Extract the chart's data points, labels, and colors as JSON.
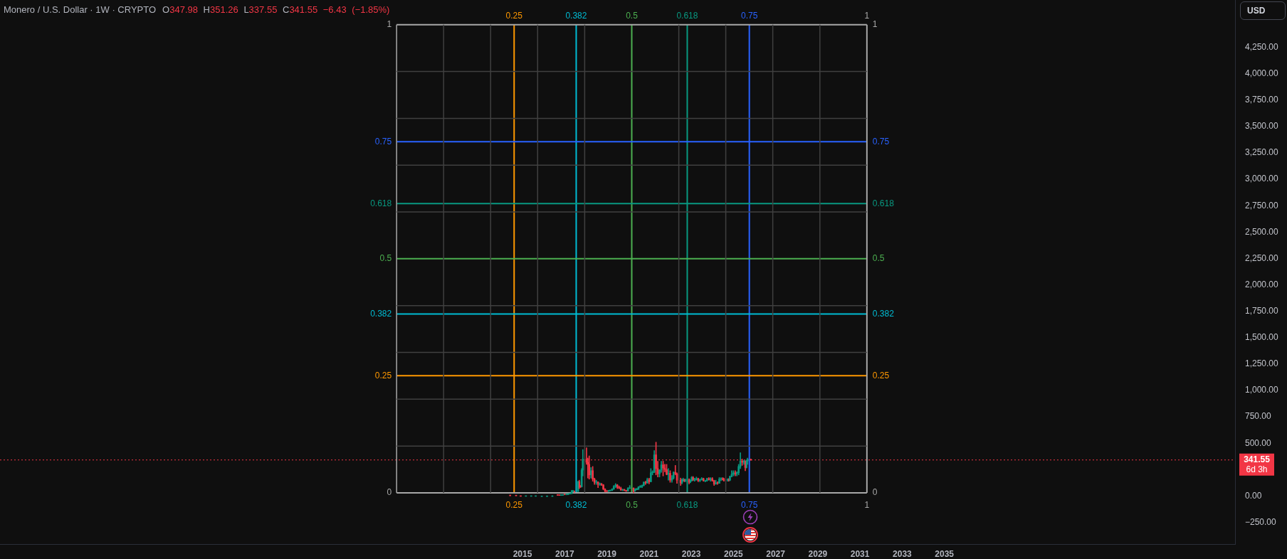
{
  "chart_data": {
    "type": "candlestick",
    "title": "Monero / U.S. Dollar · 1W · CRYPTO",
    "subtitle": "O347.98 H351.26 L337.55 C341.55 −6.43 (−1.85%)",
    "x": [
      "2014-06",
      "2014-09-12",
      "2014-12",
      "2015-03",
      "2015-06",
      "2015-08-18",
      "2015-12",
      "2016-03",
      "2016-06",
      "2016-09",
      "2016-10",
      "2016-11",
      "2016-12",
      "2017-01",
      "2017-02",
      "2017-03",
      "2017-04",
      "2017-05",
      "2017-05-25",
      "2017-06-17",
      "2017-08-20",
      "2017-09-10",
      "2017-10",
      "2017-10-22",
      "2017-11-11",
      "2018-01-14",
      "2018-02-05",
      "2018-03",
      "2018-04",
      "2018-05",
      "2018-06",
      "2018-07",
      "2018-08",
      "2018-09",
      "2018-10",
      "2018-11",
      "2018-12",
      "2019-01",
      "2019-02",
      "2019-03",
      "2019-04",
      "2019-05",
      "2019-06",
      "2019-07",
      "2019-08",
      "2019-09",
      "2019-10",
      "2019-11",
      "2019-12",
      "2020-01",
      "2020-02",
      "2020-04-08",
      "2020-04-28",
      "2020-05-18",
      "2020-06-10",
      "2020-07",
      "2020-08",
      "2020-09",
      "2020-10",
      "2020-11",
      "2020-12",
      "2021-01",
      "2021-02",
      "2021-03",
      "2021-04",
      "2021-05",
      "2021-06",
      "2021-07",
      "2021-08",
      "2021-09",
      "2021-10",
      "2021-11",
      "2021-12",
      "2022-01",
      "2022-02",
      "2022-03",
      "2022-04",
      "2022-04-29",
      "2022-07-02",
      "2022-07-24",
      "2022-08-14",
      "2022-09-03",
      "2022-09-22",
      "2022-11-25",
      "2022-12-15",
      "2023-01-08",
      "2023-02",
      "2023-03",
      "2023-04",
      "2023-05",
      "2023-06",
      "2023-07",
      "2023-08",
      "2023-09",
      "2023-10",
      "2023-11",
      "2023-12",
      "2024-01",
      "2024-02",
      "2024-03",
      "2024-04",
      "2024-05",
      "2024-06",
      "2024-07",
      "2024-07-20",
      "2024-09-22",
      "2024-10-12",
      "2024-11",
      "2024-12",
      "2025-01",
      "2025-02",
      "2025-03",
      "2025-04",
      "2025-05",
      "2025-06",
      "2025-07",
      "2025-07-25",
      "2025-08-14",
      "2025-09-01",
      "2025-10-27"
    ],
    "ohlc": [
      [
        5,
        5,
        2,
        3
      ],
      [
        3,
        3,
        2,
        2
      ],
      [
        1,
        1,
        0,
        0
      ],
      [
        0,
        1,
        0,
        0
      ],
      [
        0,
        1,
        0,
        0
      ],
      [
        0,
        1,
        0,
        1
      ],
      [
        1,
        1,
        0,
        1
      ],
      [
        1,
        2,
        1,
        1
      ],
      [
        2,
        3,
        2,
        2
      ],
      [
        9,
        12,
        6,
        7
      ],
      [
        7,
        8,
        5,
        6
      ],
      [
        6,
        10,
        5,
        8
      ],
      [
        8,
        14,
        7,
        13
      ],
      [
        13,
        14,
        11,
        12
      ],
      [
        12,
        14,
        11,
        13
      ],
      [
        13,
        24,
        13,
        20
      ],
      [
        20,
        25,
        19,
        23
      ],
      [
        23,
        55,
        22,
        40
      ],
      [
        40,
        55,
        38,
        45
      ],
      [
        45,
        47,
        36,
        42
      ],
      [
        42,
        140,
        42,
        135
      ],
      [
        135,
        150,
        70,
        90
      ],
      [
        90,
        100,
        80,
        88
      ],
      [
        88,
        260,
        85,
        245
      ],
      [
        245,
        440,
        190,
        350
      ],
      [
        350,
        458,
        300,
        320
      ],
      [
        320,
        360,
        170,
        300
      ],
      [
        300,
        380,
        160,
        200
      ],
      [
        200,
        270,
        170,
        240
      ],
      [
        240,
        280,
        140,
        160
      ],
      [
        160,
        170,
        110,
        130
      ],
      [
        130,
        150,
        110,
        132
      ],
      [
        132,
        135,
        80,
        110
      ],
      [
        110,
        125,
        100,
        115
      ],
      [
        115,
        120,
        100,
        105
      ],
      [
        105,
        110,
        60,
        65
      ],
      [
        65,
        70,
        38,
        45
      ],
      [
        45,
        52,
        40,
        44
      ],
      [
        44,
        55,
        42,
        50
      ],
      [
        50,
        56,
        48,
        52
      ],
      [
        52,
        70,
        50,
        65
      ],
      [
        65,
        100,
        62,
        90
      ],
      [
        90,
        118,
        80,
        105
      ],
      [
        105,
        110,
        70,
        82
      ],
      [
        82,
        95,
        70,
        72
      ],
      [
        72,
        85,
        55,
        56
      ],
      [
        56,
        65,
        50,
        60
      ],
      [
        60,
        65,
        50,
        52
      ],
      [
        52,
        55,
        43,
        46
      ],
      [
        46,
        80,
        45,
        72
      ],
      [
        72,
        100,
        70,
        75
      ],
      [
        75,
        78,
        30,
        45
      ],
      [
        45,
        65,
        43,
        60
      ],
      [
        60,
        72,
        55,
        62
      ],
      [
        62,
        72,
        60,
        63
      ],
      [
        63,
        90,
        62,
        85
      ],
      [
        85,
        100,
        80,
        90
      ],
      [
        90,
        105,
        80,
        100
      ],
      [
        100,
        135,
        95,
        130
      ],
      [
        130,
        140,
        110,
        125
      ],
      [
        125,
        170,
        120,
        155
      ],
      [
        155,
        170,
        115,
        135
      ],
      [
        135,
        260,
        135,
        220
      ],
      [
        220,
        240,
        200,
        225
      ],
      [
        225,
        430,
        220,
        390
      ],
      [
        390,
        510,
        200,
        260
      ],
      [
        260,
        330,
        180,
        210
      ],
      [
        210,
        250,
        180,
        245
      ],
      [
        245,
        330,
        225,
        295
      ],
      [
        295,
        330,
        190,
        265
      ],
      [
        265,
        300,
        230,
        250
      ],
      [
        250,
        300,
        200,
        205
      ],
      [
        205,
        260,
        150,
        215
      ],
      [
        215,
        240,
        130,
        150
      ],
      [
        150,
        195,
        130,
        170
      ],
      [
        170,
        230,
        160,
        225
      ],
      [
        225,
        290,
        200,
        210
      ],
      [
        210,
        220,
        120,
        150
      ],
      [
        150,
        170,
        100,
        125
      ],
      [
        125,
        160,
        115,
        155
      ],
      [
        155,
        170,
        140,
        155
      ],
      [
        155,
        160,
        135,
        145
      ],
      [
        145,
        160,
        135,
        155
      ],
      [
        155,
        165,
        115,
        130
      ],
      [
        130,
        155,
        125,
        145
      ],
      [
        145,
        185,
        140,
        175
      ],
      [
        175,
        185,
        145,
        155
      ],
      [
        155,
        170,
        140,
        155
      ],
      [
        155,
        180,
        150,
        165
      ],
      [
        165,
        170,
        135,
        145
      ],
      [
        145,
        160,
        135,
        155
      ],
      [
        155,
        175,
        150,
        165
      ],
      [
        165,
        170,
        140,
        145
      ],
      [
        145,
        150,
        135,
        145
      ],
      [
        145,
        170,
        140,
        165
      ],
      [
        165,
        175,
        150,
        155
      ],
      [
        155,
        175,
        140,
        165
      ],
      [
        165,
        175,
        140,
        145
      ],
      [
        145,
        150,
        100,
        115
      ],
      [
        115,
        150,
        110,
        125
      ],
      [
        125,
        135,
        110,
        120
      ],
      [
        120,
        175,
        120,
        160
      ],
      [
        160,
        175,
        145,
        165
      ],
      [
        165,
        175,
        150,
        155
      ],
      [
        155,
        170,
        140,
        150
      ],
      [
        150,
        165,
        140,
        155
      ],
      [
        155,
        165,
        140,
        150
      ],
      [
        150,
        190,
        145,
        185
      ],
      [
        185,
        240,
        180,
        205
      ],
      [
        205,
        240,
        190,
        220
      ],
      [
        220,
        240,
        190,
        210
      ],
      [
        210,
        230,
        190,
        220
      ],
      [
        220,
        300,
        200,
        280
      ],
      [
        280,
        410,
        260,
        330
      ],
      [
        330,
        350,
        290,
        320
      ],
      [
        320,
        340,
        300,
        330
      ],
      [
        330,
        335,
        240,
        270
      ],
      [
        270,
        340,
        265,
        330
      ],
      [
        330,
        360,
        300,
        348
      ],
      [
        347.98,
        351.26,
        337.55,
        341.55
      ]
    ],
    "colors": [
      "#f23645",
      "#f23645",
      "#f23645",
      "#089981",
      "#089981",
      "#089981",
      "#089981",
      "#089981",
      "#089981",
      "#f23645",
      "#f23645",
      "#089981",
      "#089981",
      "#f23645",
      "#089981",
      "#089981",
      "#089981",
      "#089981",
      "#089981",
      "#f23645",
      "#089981",
      "#f23645",
      "#f23645",
      "#089981",
      "#089981",
      "#f23645",
      "#f23645",
      "#f23645",
      "#089981",
      "#f23645",
      "#f23645",
      "#089981",
      "#f23645",
      "#089981",
      "#f23645",
      "#f23645",
      "#f23645",
      "#f23645",
      "#089981",
      "#089981",
      "#089981",
      "#089981",
      "#089981",
      "#f23645",
      "#f23645",
      "#f23645",
      "#089981",
      "#f23645",
      "#f23645",
      "#089981",
      "#089981",
      "#f23645",
      "#089981",
      "#089981",
      "#089981",
      "#089981",
      "#089981",
      "#089981",
      "#089981",
      "#f23645",
      "#089981",
      "#f23645",
      "#089981",
      "#089981",
      "#089981",
      "#f23645",
      "#f23645",
      "#089981",
      "#089981",
      "#f23645",
      "#f23645",
      "#f23645",
      "#089981",
      "#f23645",
      "#089981",
      "#089981",
      "#f23645",
      "#f23645",
      "#f23645",
      "#089981",
      "#089981",
      "#f23645",
      "#089981",
      "#f23645",
      "#089981",
      "#089981",
      "#f23645",
      "#089981",
      "#089981",
      "#f23645",
      "#089981",
      "#089981",
      "#f23645",
      "#089981",
      "#089981",
      "#f23645",
      "#089981",
      "#f23645",
      "#f23645",
      "#089981",
      "#f23645",
      "#089981",
      "#089981",
      "#f23645",
      "#f23645",
      "#089981",
      "#f23645",
      "#089981",
      "#089981",
      "#089981",
      "#f23645",
      "#089981",
      "#089981",
      "#089981",
      "#f23645",
      "#089981",
      "#f23645",
      "#089981",
      "#089981",
      "#f23645"
    ],
    "series": [
      {
        "type": "line",
        "color": "#404040",
        "x": [
          "2009-01-12",
          "2031-05-01"
        ],
        "values": [
          473,
          473
        ]
      },
      {
        "type": "line",
        "color": "#404040",
        "x": [
          "2009-01-12",
          "2031-05-01"
        ],
        "values": [
          917,
          917
        ]
      },
      {
        "type": "line",
        "color": "#404040",
        "x": [
          "2009-01-12",
          "2031-05-01"
        ],
        "values": [
          1360,
          1360
        ]
      },
      {
        "type": "line",
        "color": "#404040",
        "x": [
          "2009-01-12",
          "2031-05-01"
        ],
        "values": [
          1804,
          1804
        ]
      },
      {
        "type": "line",
        "color": "#404040",
        "x": [
          "2009-01-12",
          "2031-05-01"
        ],
        "values": [
          2690,
          2690
        ]
      },
      {
        "type": "line",
        "color": "#404040",
        "x": [
          "2009-01-12",
          "2031-05-01"
        ],
        "values": [
          3134,
          3134
        ]
      },
      {
        "type": "line",
        "color": "#404040",
        "x": [
          "2009-01-12",
          "2031-05-01"
        ],
        "values": [
          3577,
          3577
        ]
      },
      {
        "type": "line",
        "color": "#404040",
        "x": [
          "2009-01-12",
          "2031-05-01"
        ],
        "values": [
          4021,
          4021
        ]
      },
      {
        "type": "line",
        "color": "#404040",
        "x": [
          "2011-04-06",
          "2011-04-06"
        ],
        "values": [
          30,
          4464
        ]
      },
      {
        "type": "line",
        "color": "#404040",
        "x": [
          "2013-06-28",
          "2013-06-28"
        ],
        "values": [
          30,
          4464
        ]
      },
      {
        "type": "line",
        "color": "#404040",
        "x": [
          "2015-09-20",
          "2015-09-20"
        ],
        "values": [
          30,
          4464
        ]
      },
      {
        "type": "line",
        "color": "#404040",
        "x": [
          "2017-12-13",
          "2017-12-13"
        ],
        "values": [
          30,
          4464
        ]
      },
      {
        "type": "line",
        "color": "#404040",
        "x": [
          "2022-05-31",
          "2022-05-31"
        ],
        "values": [
          30,
          4464
        ]
      },
      {
        "type": "line",
        "color": "#404040",
        "x": [
          "2024-08-21",
          "2024-08-21"
        ],
        "values": [
          30,
          4464
        ]
      },
      {
        "type": "line",
        "color": "#404040",
        "x": [
          "2026-11-13",
          "2026-11-13"
        ],
        "values": [
          30,
          4464
        ]
      },
      {
        "type": "line",
        "color": "#404040",
        "x": [
          "2029-02-06",
          "2029-02-06"
        ],
        "values": [
          30,
          4464
        ]
      },
      {
        "type": "line",
        "color": "#a8a8a8",
        "x": [
          "2009-01-12",
          "2009-01-12"
        ],
        "values": [
          30,
          4464
        ]
      },
      {
        "type": "line",
        "name": "1",
        "color": "#a8a8a8",
        "x": [
          "2031-05-01",
          "2031-05-01"
        ],
        "values": [
          30,
          4464
        ]
      },
      {
        "type": "line",
        "name": "0",
        "color": "#a8a8a8",
        "x": [
          "2009-01-12",
          "2031-05-01"
        ],
        "values": [
          30,
          30
        ]
      },
      {
        "type": "line",
        "name": "1",
        "color": "#a8a8a8",
        "x": [
          "2009-01-12",
          "2031-05-01"
        ],
        "values": [
          4464,
          4464
        ]
      },
      {
        "type": "line",
        "name": "0.25",
        "color": "#ff9800",
        "x": [
          "2009-01-12",
          "2031-05-01"
        ],
        "values": [
          1139,
          1139
        ]
      },
      {
        "type": "line",
        "name": "0.382",
        "color": "#00bcd4",
        "x": [
          "2009-01-12",
          "2031-05-01"
        ],
        "values": [
          1724,
          1724
        ]
      },
      {
        "type": "line",
        "name": "0.5",
        "color": "#4caf50",
        "x": [
          "2009-01-12",
          "2031-05-01"
        ],
        "values": [
          2247,
          2247
        ]
      },
      {
        "type": "line",
        "name": "0.618",
        "color": "#089981",
        "x": [
          "2009-01-12",
          "2031-05-01"
        ],
        "values": [
          2770,
          2770
        ]
      },
      {
        "type": "line",
        "name": "0.75",
        "color": "#2962ff",
        "x": [
          "2009-01-12",
          "2031-05-01"
        ],
        "values": [
          3356,
          3356
        ]
      },
      {
        "type": "line",
        "name": "0.25",
        "color": "#ff9800",
        "x": [
          "2014-08-09",
          "2014-08-09"
        ],
        "values": [
          30,
          4464
        ]
      },
      {
        "type": "line",
        "name": "0.382",
        "color": "#00bcd4",
        "x": [
          "2017-07-19",
          "2017-07-19"
        ],
        "values": [
          30,
          4464
        ]
      },
      {
        "type": "line",
        "name": "0.5",
        "color": "#4caf50",
        "x": [
          "2020-03-07",
          "2020-03-07"
        ],
        "values": [
          30,
          4464
        ]
      },
      {
        "type": "line",
        "name": "0.618",
        "color": "#089981",
        "x": [
          "2022-10-24",
          "2022-10-24"
        ],
        "values": [
          30,
          4464
        ]
      },
      {
        "type": "line",
        "name": "0.75",
        "color": "#2962ff",
        "x": [
          "2025-10-03",
          "2025-10-03"
        ],
        "values": [
          30,
          4464
        ]
      }
    ],
    "xlim": [
      "1990-03-25",
      "2048-10-13"
    ],
    "xticks": [
      "2015",
      "2017",
      "2019",
      "2021",
      "2023",
      "2025",
      "2027",
      "2029",
      "2031",
      "2033",
      "2035"
    ],
    "ylim": [
      -455,
      4698
    ],
    "yticks": [
      {
        "value": -250,
        "label": "−250.00"
      },
      {
        "value": 0,
        "label": "0.00"
      },
      {
        "value": 500,
        "label": "500.00"
      },
      {
        "value": 750,
        "label": "750.00"
      },
      {
        "value": 1000,
        "label": "1,000.00"
      },
      {
        "value": 1250,
        "label": "1,250.00"
      },
      {
        "value": 1500,
        "label": "1,500.00"
      },
      {
        "value": 1750,
        "label": "1,750.00"
      },
      {
        "value": 2000,
        "label": "2,000.00"
      },
      {
        "value": 2250,
        "label": "2,250.00"
      },
      {
        "value": 2500,
        "label": "2,500.00"
      },
      {
        "value": 2750,
        "label": "2,750.00"
      },
      {
        "value": 3000,
        "label": "3,000.00"
      },
      {
        "value": 3250,
        "label": "3,250.00"
      },
      {
        "value": 3500,
        "label": "3,500.00"
      },
      {
        "value": 3750,
        "label": "3,750.00"
      },
      {
        "value": 4000,
        "label": "4,000.00"
      },
      {
        "value": 4250,
        "label": "4,250.00"
      }
    ],
    "ref_lines": [
      {
        "axis": "y",
        "value": 341.55,
        "label": "341.55",
        "color": "#f23645",
        "line_style": "dotted"
      }
    ],
    "annotations": [
      "USD",
      "6d 3h"
    ]
  }
}
